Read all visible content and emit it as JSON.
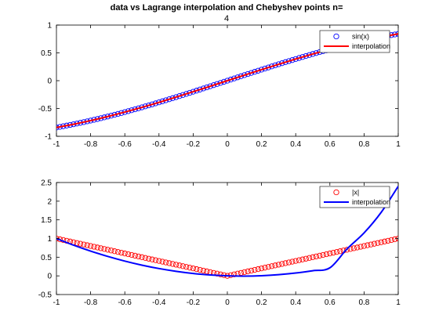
{
  "chart_data": [
    {
      "type": "line",
      "title": "data vs Lagrange interpolation and Chebyshev points n=",
      "subtitle": "4",
      "xlim": [
        -1,
        1
      ],
      "ylim": [
        -1,
        1
      ],
      "xticks": [
        -1,
        -0.8,
        -0.6,
        -0.4,
        -0.2,
        0,
        0.2,
        0.4,
        0.6,
        0.8,
        1
      ],
      "yticks": [
        -1,
        -0.5,
        0,
        0.5,
        1
      ],
      "xtick_labels": [
        "-1",
        "-0.8",
        "-0.6",
        "-0.4",
        "-0.2",
        "0",
        "0.2",
        "0.4",
        "0.6",
        "0.8",
        "1"
      ],
      "ytick_labels": [
        "-1",
        "-0.5",
        "0",
        "0.5",
        "1"
      ],
      "grid": false,
      "legend_position": "top-right",
      "series": [
        {
          "name": "sin(x)",
          "kind": "marker",
          "marker": "circle",
          "color": "#0000ff",
          "function": "sin(x)",
          "x_range": [
            -1,
            1
          ],
          "count": 101
        },
        {
          "name": "interpolation",
          "kind": "line",
          "color": "#ff0000",
          "x": [
            -1,
            -0.9,
            -0.8,
            -0.7,
            -0.6,
            -0.5,
            -0.4,
            -0.3,
            -0.2,
            -0.1,
            0,
            0.1,
            0.2,
            0.3,
            0.4,
            0.5,
            0.6,
            0.7,
            0.8,
            0.9,
            1
          ],
          "y": [
            -0.8415,
            -0.7833,
            -0.7174,
            -0.6442,
            -0.5646,
            -0.4794,
            -0.3894,
            -0.2955,
            -0.1987,
            -0.0998,
            0,
            0.0998,
            0.1987,
            0.2955,
            0.3894,
            0.4794,
            0.5646,
            0.6442,
            0.7174,
            0.7833,
            0.8415
          ]
        }
      ]
    },
    {
      "type": "line",
      "xlim": [
        -1,
        1
      ],
      "ylim": [
        -0.5,
        2.5
      ],
      "xticks": [
        -1,
        -0.8,
        -0.6,
        -0.4,
        -0.2,
        0,
        0.2,
        0.4,
        0.6,
        0.8,
        1
      ],
      "yticks": [
        -0.5,
        0,
        0.5,
        1,
        1.5,
        2,
        2.5
      ],
      "xtick_labels": [
        "-1",
        "-0.8",
        "-0.6",
        "-0.4",
        "-0.2",
        "0",
        "0.2",
        "0.4",
        "0.6",
        "0.8",
        "1"
      ],
      "ytick_labels": [
        "-0.5",
        "0",
        "0.5",
        "1",
        "1.5",
        "2",
        "2.5"
      ],
      "grid": false,
      "legend_position": "top-right",
      "series": [
        {
          "name": "|x|",
          "kind": "marker",
          "marker": "circle",
          "color": "#ff0000",
          "function": "|x|",
          "x_range": [
            -1,
            1
          ],
          "count": 101
        },
        {
          "name": "interpolation",
          "kind": "line",
          "color": "#0000ff",
          "x": [
            -1,
            -0.9,
            -0.8,
            -0.7,
            -0.6,
            -0.5,
            -0.4,
            -0.3,
            -0.2,
            -0.1,
            0,
            0.1,
            0.2,
            0.3,
            0.4,
            0.5,
            0.6,
            0.7,
            0.8,
            0.9,
            1
          ],
          "y": [
            1.0,
            0.8235,
            0.664,
            0.5215,
            0.396,
            0.2875,
            0.196,
            0.1215,
            0.064,
            0.0235,
            0.0,
            -0.0065,
            0.004,
            0.0315,
            0.076,
            0.1375,
            0.216,
            0.72,
            1.15,
            1.7,
            2.4
          ]
        }
      ]
    }
  ]
}
